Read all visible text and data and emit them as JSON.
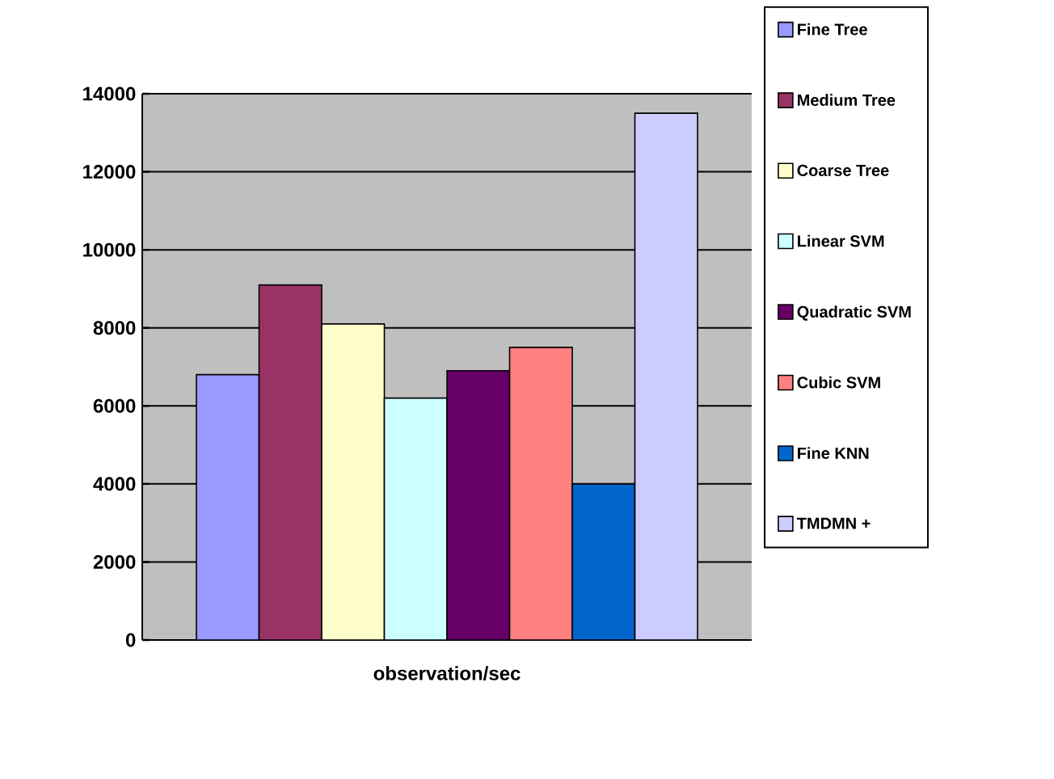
{
  "chart_data": {
    "type": "bar",
    "xlabel": null,
    "categories": [
      "observation/sec"
    ],
    "series": [
      {
        "name": "Fine Tree",
        "color": "#9999ff",
        "values": [
          6800
        ]
      },
      {
        "name": "Medium Tree",
        "color": "#993366",
        "values": [
          9100
        ]
      },
      {
        "name": "Coarse Tree",
        "color": "#ffffcc",
        "values": [
          8100
        ]
      },
      {
        "name": "Linear SVM",
        "color": "#ccffff",
        "values": [
          6200
        ]
      },
      {
        "name": "Quadratic SVM",
        "color": "#660066",
        "values": [
          6900
        ]
      },
      {
        "name": "Cubic SVM",
        "color": "#ff8080",
        "values": [
          7500
        ]
      },
      {
        "name": "Fine KNN",
        "color": "#0066cc",
        "values": [
          4000
        ]
      },
      {
        "name": "TMDMN +",
        "color": "#ccccff",
        "values": [
          13500
        ]
      }
    ],
    "ylim": [
      0,
      14000
    ],
    "yticks": [
      0,
      2000,
      4000,
      6000,
      8000,
      10000,
      12000,
      14000
    ],
    "grid": "y",
    "legend": "right"
  }
}
